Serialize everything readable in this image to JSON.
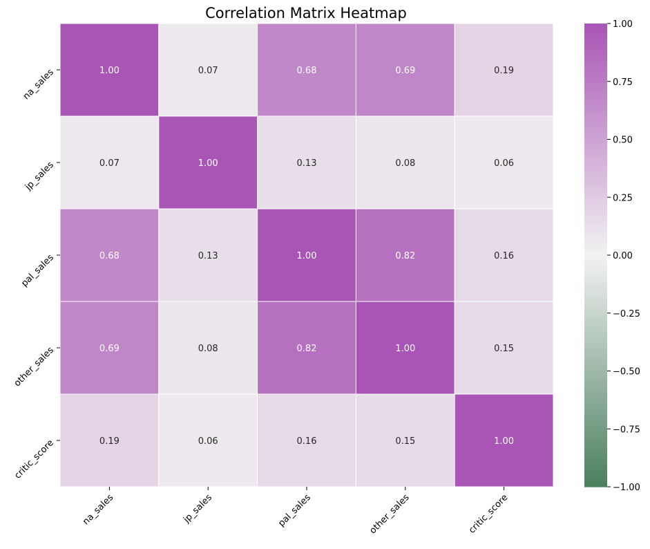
{
  "chart_data": {
    "type": "heatmap",
    "title": "Correlation Matrix Heatmap",
    "xlabel": "",
    "ylabel": "",
    "x_categories": [
      "na_sales",
      "jp_sales",
      "pal_sales",
      "other_sales",
      "critic_score"
    ],
    "y_categories": [
      "na_sales",
      "jp_sales",
      "pal_sales",
      "other_sales",
      "critic_score"
    ],
    "values": [
      [
        1.0,
        0.07,
        0.68,
        0.69,
        0.19
      ],
      [
        0.07,
        1.0,
        0.13,
        0.08,
        0.06
      ],
      [
        0.68,
        0.13,
        1.0,
        0.82,
        0.16
      ],
      [
        0.69,
        0.08,
        0.82,
        1.0,
        0.15
      ],
      [
        0.19,
        0.06,
        0.16,
        0.15,
        1.0
      ]
    ],
    "value_format": "2 decimals",
    "colorbar": {
      "range": [
        -1.0,
        1.0
      ],
      "ticks": [
        1.0,
        0.75,
        0.5,
        0.25,
        0.0,
        -0.25,
        -0.5,
        -0.75,
        -1.0
      ],
      "tick_labels": [
        "1.00",
        "0.75",
        "0.50",
        "0.25",
        "0.00",
        "−0.25",
        "−0.50",
        "−0.75",
        "−1.00"
      ],
      "colormap": "diverging green-white-purple",
      "colors": {
        "low": "#4a7f5e",
        "mid": "#f2f2f2",
        "high": "#a855b5"
      }
    },
    "grid_lines_color": "#ffffff",
    "annotation_colors": {
      "light": "#ffffff",
      "dark": "#262626"
    }
  }
}
